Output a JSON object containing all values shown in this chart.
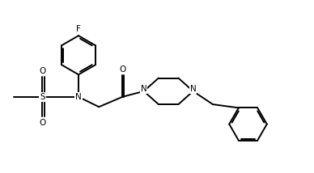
{
  "background_color": "#ffffff",
  "line_color": "#000000",
  "lw": 1.4,
  "figsize": [
    3.88,
    2.14
  ],
  "dpi": 100,
  "xlim": [
    0,
    10
  ],
  "ylim": [
    0,
    5.5
  ]
}
